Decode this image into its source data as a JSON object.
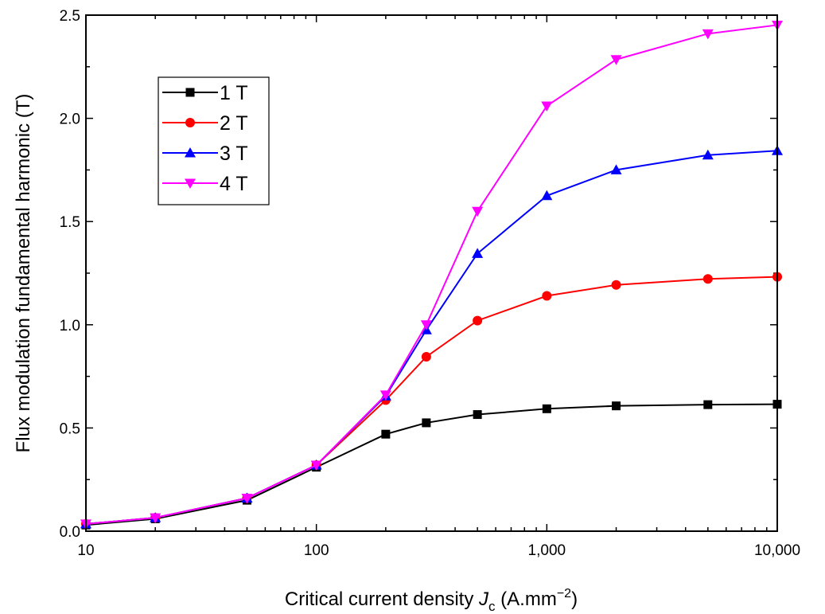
{
  "chart_data": {
    "type": "line",
    "xscale": "log",
    "xlabel_prefix": "Critical current density ",
    "xlabel_var": "J",
    "xlabel_sub": "c",
    "xlabel_unit_open": " (A.mm",
    "xlabel_unit_exp": "−2",
    "xlabel_unit_close": ")",
    "ylabel": "Flux modulation fundamental harmonic (T)",
    "xlim": [
      10,
      10000
    ],
    "ylim": [
      0,
      2.5
    ],
    "xticks": [
      10,
      100,
      1000,
      10000
    ],
    "xtick_labels": [
      "10",
      "100",
      "1,000",
      "10,000"
    ],
    "yticks": [
      0.0,
      0.5,
      1.0,
      1.5,
      2.0,
      2.5
    ],
    "ytick_labels": [
      "0.0",
      "0.5",
      "1.0",
      "1.5",
      "2.0",
      "2.5"
    ],
    "x": [
      10,
      20,
      50,
      100,
      200,
      300,
      500,
      1000,
      2000,
      5000,
      10000
    ],
    "legend_position": "top-left",
    "series": [
      {
        "name": "1 T",
        "color": "#000000",
        "marker": "square",
        "values": [
          0.03,
          0.06,
          0.15,
          0.31,
          0.47,
          0.525,
          0.565,
          0.593,
          0.607,
          0.613,
          0.615
        ]
      },
      {
        "name": "2 T",
        "color": "#ff0000",
        "marker": "circle",
        "values": [
          0.035,
          0.065,
          0.16,
          0.32,
          0.635,
          0.845,
          1.02,
          1.14,
          1.193,
          1.222,
          1.232
        ]
      },
      {
        "name": "3 T",
        "color": "#0000ff",
        "marker": "triangle-up",
        "values": [
          0.035,
          0.065,
          0.16,
          0.32,
          0.655,
          0.975,
          1.345,
          1.625,
          1.75,
          1.822,
          1.843
        ]
      },
      {
        "name": "4 T",
        "color": "#ff00ff",
        "marker": "triangle-down",
        "values": [
          0.035,
          0.065,
          0.16,
          0.32,
          0.66,
          1.0,
          1.55,
          2.06,
          2.285,
          2.41,
          2.452
        ]
      }
    ]
  }
}
